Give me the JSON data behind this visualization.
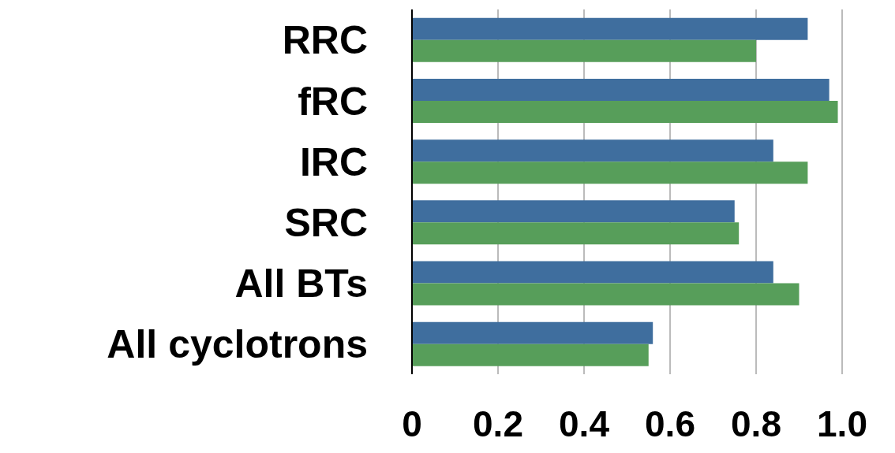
{
  "chart_data": {
    "type": "bar",
    "orientation": "horizontal",
    "categories": [
      "RRC",
      "fRC",
      "IRC",
      "SRC",
      "All BTs",
      "All cyclotrons"
    ],
    "series": [
      {
        "color": "#3f6e9e",
        "values": [
          0.92,
          0.97,
          0.84,
          0.75,
          0.84,
          0.56
        ]
      },
      {
        "color": "#579e5a",
        "values": [
          0.8,
          0.99,
          0.92,
          0.76,
          0.9,
          0.55
        ]
      }
    ],
    "xlim": [
      0,
      1
    ],
    "xticks": [
      0,
      0.2,
      0.4,
      0.6,
      0.8,
      {
        "value": 1,
        "label": "1.0"
      }
    ],
    "grid": "x"
  }
}
